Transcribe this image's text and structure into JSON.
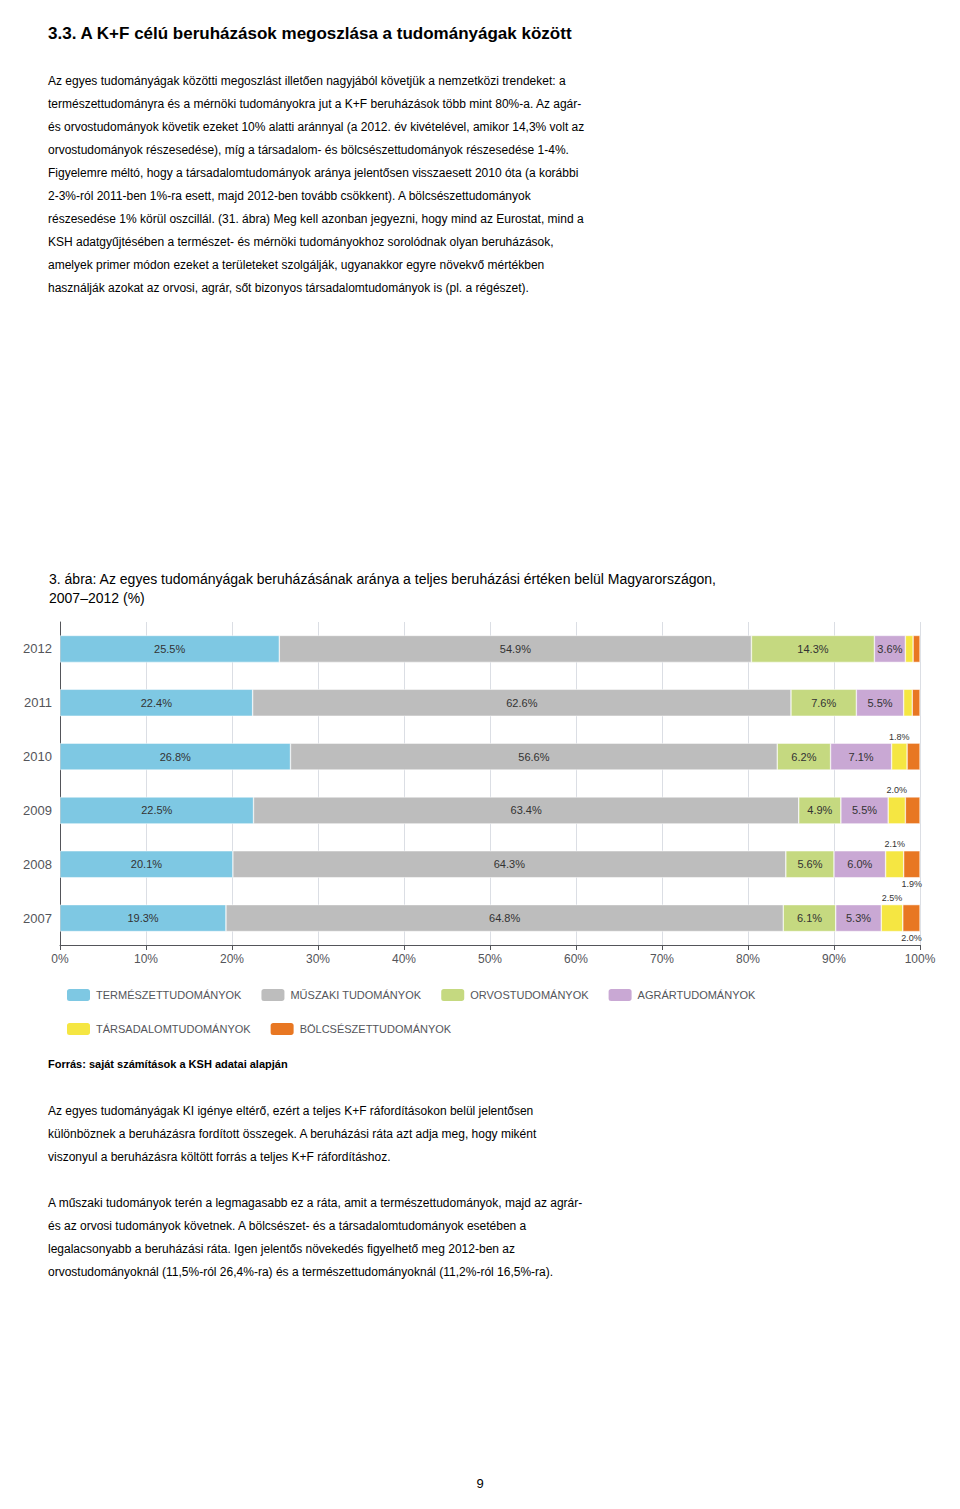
{
  "page_title": "3.3. A K+F célú beruházások megoszlása a tudományágak között",
  "body_text1_lines": [
    "Az egyes tudományágak közötti megoszlást illetően nagyjából követjük a nemzetközi trendeket: a",
    "természettudományra és a mérnöki tudományokra jut a K+F beruházások több mint 80%-a. Az agár-",
    "és orvostudományok követik ezeket 10% alatti aránnyal (a 2012. év kivételével, amikor 14,3% volt az",
    "orvostudományok részesedése), míg a társadalom- és bölcsészettudományok részesedése 1-4%.",
    "Figyelemre méltó, hogy a társadalomtudományok aránya jelentősen visszaesett 2010 óta (a korábbi",
    "2-3%-ról 2011-ben 1%-ra esett, majd 2012-ben tovább csökkent). A bölcsészettudományok",
    "részesedése 1% körül oszcillál. (31. ábra) Meg kell azonban jegyezni, hogy mind az Eurostat, mind a",
    "KSH adatgyűjtésében a természet- és mérnöki tudományokhoz sorolódnak olyan beruházások,",
    "amelyek primer módon ezeket a területeket szolgálják, ugyanakkor egyre növekvő mértékben",
    "használják azokat az orvosi, agrár, sőt bizonyos társadalomtudományok is (pl. a régészet)."
  ],
  "chart_data": {
    "type": "bar",
    "orientation": "horizontal",
    "stacked": true,
    "title": "3. ábra: Az egyes tudományágak beruházásának aránya a teljes beruházási értéken belül Magyarországon,\n2007–2012 (%)",
    "categories": [
      "2012",
      "2011",
      "2010",
      "2009",
      "2008",
      "2007"
    ],
    "series": [
      {
        "name": "TERMÉSZETTUDOMÁNYOK",
        "color": "#7EC8E3",
        "values": [
          25.5,
          22.4,
          26.8,
          22.5,
          20.1,
          19.3
        ],
        "value_labels": [
          "25.5%",
          "22.4%",
          "26.8%",
          "22.5%",
          "20.1%",
          "19.3%"
        ]
      },
      {
        "name": "MŰSZAKI TUDOMÁNYOK",
        "color": "#BDBDBD",
        "values": [
          54.9,
          62.6,
          56.6,
          63.4,
          64.3,
          64.8
        ],
        "value_labels": [
          "54.9%",
          "62.6%",
          "56.6%",
          "63.4%",
          "64.3%",
          "64.8%"
        ]
      },
      {
        "name": "ORVOSTUDOMÁNYOK",
        "color": "#C5D980",
        "values": [
          14.3,
          7.6,
          6.2,
          4.9,
          5.6,
          6.1
        ],
        "value_labels": [
          "14.3%",
          "7.6%",
          "6.2%",
          "4.9%",
          "5.6%",
          "6.1%"
        ]
      },
      {
        "name": "AGRÁRTUDOMÁNYOK",
        "color": "#C9A8D4",
        "values": [
          3.6,
          5.5,
          7.1,
          5.5,
          6.0,
          5.3
        ],
        "value_labels": [
          "3.6%",
          "5.5%",
          "7.1%",
          "5.5%",
          "6.0%",
          "5.3%"
        ]
      },
      {
        "name": "TÁRSADALOMTUDOMÁNYOK",
        "color": "#F5E642",
        "values": [
          0.9,
          1.0,
          1.8,
          2.0,
          2.1,
          2.5
        ],
        "value_labels": [
          null,
          null,
          "1.8%",
          "2.0%",
          "2.1%",
          "2.5%"
        ]
      },
      {
        "name": "BÖLCSÉSZETTUDOMÁNYOK",
        "color": "#E87722",
        "values": [
          0.8,
          0.9,
          1.5,
          1.7,
          1.9,
          2.0
        ],
        "value_labels": [
          null,
          null,
          null,
          null,
          "1.9%",
          "2.0%"
        ]
      }
    ],
    "xlim": [
      0,
      100
    ],
    "xticks": [
      {
        "value": 0,
        "label": "0%"
      },
      {
        "value": 10,
        "label": "10%"
      },
      {
        "value": 20,
        "label": "20%"
      },
      {
        "value": 30,
        "label": "30%"
      },
      {
        "value": 40,
        "label": "40%"
      },
      {
        "value": 50,
        "label": "50%"
      },
      {
        "value": 60,
        "label": "60%"
      },
      {
        "value": 70,
        "label": "70%"
      },
      {
        "value": 80,
        "label": "80%"
      },
      {
        "value": 90,
        "label": "90%"
      },
      {
        "value": 100,
        "label": "100%"
      }
    ],
    "grid": true,
    "legend": "bottom",
    "data_labels": true
  },
  "source": "Forrás: saját számítások a KSH adatai alapján",
  "body_text2_paragraphs": [
    [
      "Az egyes tudományágak KI igénye eltérő, ezért a teljes K+F ráfordításokon belül jelentősen",
      "különböznek a beruházásra fordított összegek. A beruházási ráta azt adja meg, hogy miként",
      "viszonyul a beruházásra költött forrás a teljes K+F ráfordításhoz."
    ],
    [
      "A műszaki tudományok terén a legmagasabb ez a ráta, amit a természettudományok, majd az agrár-",
      "és az orvosi tudományok követnek. A bölcsészet- és a társadalomtudományok esetében a",
      "legalacsonyabb a beruházási ráta. Igen jelentős növekedés figyelhető meg 2012-ben az",
      "orvostudományoknál (11,5%-ról 26,4%-ra) és a természettudományoknál (11,2%-ról 16,5%-ra)."
    ]
  ],
  "page_number": "9"
}
